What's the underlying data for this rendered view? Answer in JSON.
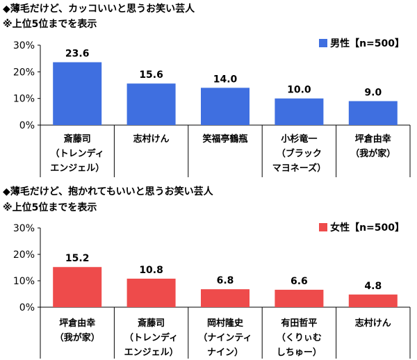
{
  "chart_data": [
    {
      "type": "bar",
      "title": "◆薄毛だけど、カッコいいと思うお笑い芸人",
      "subtitle": "※上位5位までを表示",
      "categories": [
        [
          "斎藤司",
          "（トレンディ",
          "エンジェル）"
        ],
        [
          "志村けん"
        ],
        [
          "笑福亭鶴瓶"
        ],
        [
          "小杉竜一",
          "（ブラック",
          "マヨネーズ）"
        ],
        [
          "坪倉由幸",
          "（我が家）"
        ]
      ],
      "series": [
        {
          "name": "男性【n=500】",
          "values": [
            23.6,
            15.6,
            14.0,
            10.0,
            9.0
          ]
        }
      ],
      "value_labels": [
        "23.6",
        "15.6",
        "14.0",
        "10.0",
        "9.0"
      ],
      "yticks": [
        "0%",
        "10%",
        "20%",
        "30%"
      ],
      "ylim": [
        0,
        30
      ],
      "color": "#3f6fe0",
      "grid": false,
      "legend_position": "top-right"
    },
    {
      "type": "bar",
      "title": "◆薄毛だけど、抱かれてもいいと思うお笑い芸人",
      "subtitle": "※上位5位までを表示",
      "categories": [
        [
          "坪倉由幸",
          "（我が家）"
        ],
        [
          "斎藤司",
          "（トレンディ",
          "エンジェル）"
        ],
        [
          "岡村隆史",
          "（ナインティ",
          "ナイン）"
        ],
        [
          "有田哲平",
          "（くりぃむ",
          "しちゅー）"
        ],
        [
          "志村けん"
        ]
      ],
      "series": [
        {
          "name": "女性【n=500】",
          "values": [
            15.2,
            10.8,
            6.8,
            6.6,
            4.8
          ]
        }
      ],
      "value_labels": [
        "15.2",
        "10.8",
        "6.8",
        "6.6",
        "4.8"
      ],
      "yticks": [
        "0%",
        "10%",
        "20%",
        "30%"
      ],
      "ylim": [
        0,
        30
      ],
      "color": "#ee4b4b",
      "grid": false,
      "legend_position": "top-right"
    }
  ]
}
